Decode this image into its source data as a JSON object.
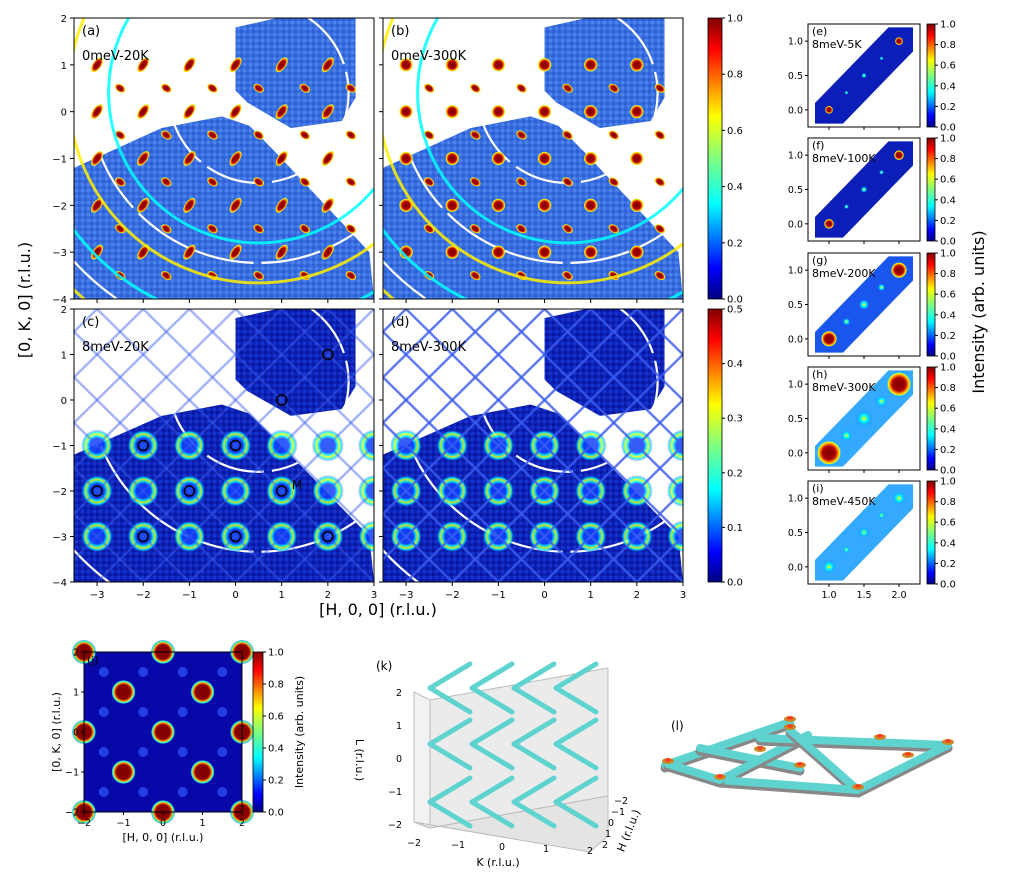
{
  "colors": {
    "jet": [
      "#00007f",
      "#0000ff",
      "#007fff",
      "#00ffff",
      "#7fff7f",
      "#ffff00",
      "#ff7f00",
      "#ff0000",
      "#7f0000"
    ],
    "map_background": "#3366dd",
    "map_background_dark": "#0a1fb0",
    "ring": "#ffffff",
    "marker": "#000000",
    "tube": "#5fd3cf"
  },
  "labels": {
    "main_xlabel": "[H, 0, 0] (r.l.u.)",
    "main_ylabel": "[0, K, 0] (r.l.u.)",
    "side_cbar_label": "Intensity (arb. units)",
    "j_xlabel": "[H, 0, 0] (r.l.u.)",
    "j_ylabel": "[0, K, 0] (r.l.u.)",
    "j_cbar_label": "Intensity (arb. units)",
    "k_xlabel": "K (r.l.u.)",
    "k_ylabel": "H (r.l.u.)",
    "k_zlabel": "L (r.l.u.)",
    "m_point": "M"
  },
  "chart_data": [
    {
      "type": "heatmap",
      "panel": "(a)",
      "annotation": "0meV-20K",
      "x_range": [
        -3.5,
        3
      ],
      "y_range": [
        -4,
        2
      ],
      "x_ticks": [
        "-3",
        "-2",
        "-1",
        "0",
        "1",
        "2",
        "3"
      ],
      "y_ticks": [
        "2",
        "1",
        "0",
        "-1",
        "-2",
        "-3",
        "-4"
      ],
      "colorbar": {
        "range": [
          0,
          1
        ],
        "ticks": [
          "0.0",
          "0.2",
          "0.4",
          "0.6",
          "0.8",
          "1.0"
        ]
      }
    },
    {
      "type": "heatmap",
      "panel": "(b)",
      "annotation": "0meV-300K",
      "x_range": [
        -3.5,
        3
      ],
      "y_range": [
        -4,
        2
      ]
    },
    {
      "type": "heatmap",
      "panel": "(c)",
      "annotation": "8meV-20K",
      "x_range": [
        -3.5,
        3
      ],
      "y_range": [
        -4,
        2
      ],
      "colorbar": {
        "range": [
          0,
          0.5
        ],
        "ticks": [
          "0.0",
          "0.1",
          "0.2",
          "0.3",
          "0.4",
          "0.5"
        ]
      },
      "circled_points": [
        [
          2,
          1
        ],
        [
          1,
          0
        ],
        [
          -2,
          -1
        ],
        [
          0,
          -1
        ],
        [
          -3,
          -2
        ],
        [
          -1,
          -2
        ],
        [
          1,
          -2
        ],
        [
          -2,
          -3
        ],
        [
          0,
          -3
        ],
        [
          2,
          -3
        ]
      ],
      "labeled_point": {
        "label": "M",
        "h": 1,
        "k": -2
      }
    },
    {
      "type": "heatmap",
      "panel": "(d)",
      "annotation": "8meV-300K",
      "x_range": [
        -3.5,
        3
      ],
      "y_range": [
        -4,
        2
      ]
    },
    {
      "type": "heatmap",
      "panel": "(e)",
      "annotation": "8meV-5K",
      "x_ticks": [
        "1.0",
        "1.5",
        "2.0"
      ],
      "y_ticks": [
        "1.0",
        "0.5",
        "0.0"
      ],
      "colorbar": {
        "range": [
          0,
          1
        ],
        "ticks": [
          "0.0",
          "0.2",
          "0.4",
          "0.6",
          "0.8",
          "1.0"
        ]
      }
    },
    {
      "type": "heatmap",
      "panel": "(f)",
      "annotation": "8meV-100K",
      "x_ticks": [
        "1.0",
        "1.5",
        "2.0"
      ],
      "y_ticks": [
        "1.0",
        "0.5",
        "0.0"
      ],
      "colorbar": {
        "range": [
          0,
          1
        ],
        "ticks": [
          "0.0",
          "0.2",
          "0.4",
          "0.6",
          "0.8",
          "1.0"
        ]
      }
    },
    {
      "type": "heatmap",
      "panel": "(g)",
      "annotation": "8meV-200K",
      "x_ticks": [
        "1.0",
        "1.5",
        "2.0"
      ],
      "y_ticks": [
        "1.0",
        "0.5",
        "0.0"
      ],
      "colorbar": {
        "range": [
          0,
          1
        ],
        "ticks": [
          "0.0",
          "0.2",
          "0.4",
          "0.6",
          "0.8",
          "1.0"
        ]
      }
    },
    {
      "type": "heatmap",
      "panel": "(h)",
      "annotation": "8meV-300K",
      "x_ticks": [
        "1.0",
        "1.5",
        "2.0"
      ],
      "y_ticks": [
        "1.0",
        "0.5",
        "0.0"
      ],
      "colorbar": {
        "range": [
          0,
          1
        ],
        "ticks": [
          "0.0",
          "0.2",
          "0.4",
          "0.6",
          "0.8",
          "1.0"
        ]
      }
    },
    {
      "type": "heatmap",
      "panel": "(i)",
      "annotation": "8meV-450K",
      "x_ticks": [
        "1.0",
        "1.5",
        "2.0"
      ],
      "y_ticks": [
        "1.0",
        "0.5",
        "0.0"
      ],
      "colorbar": {
        "range": [
          0,
          1
        ],
        "ticks": [
          "0.0",
          "0.2",
          "0.4",
          "0.6",
          "0.8",
          "1.0"
        ]
      }
    },
    {
      "type": "heatmap",
      "panel": "(j)",
      "x_range": [
        -2,
        2
      ],
      "y_range": [
        -2,
        2
      ],
      "x_ticks": [
        "-2",
        "-1",
        "0",
        "1",
        "2"
      ],
      "y_ticks": [
        "2",
        "1",
        "0",
        "-1",
        "-2"
      ],
      "colorbar": {
        "range": [
          0,
          1
        ],
        "ticks": [
          "0.0",
          "0.2",
          "0.4",
          "0.6",
          "0.8",
          "1.0"
        ]
      }
    },
    {
      "type": "other",
      "panel": "(k)",
      "z_ticks": [
        "2",
        "1",
        "0",
        "-1",
        "-2"
      ],
      "x_ticks": [
        "-2",
        "-1",
        "0",
        "1",
        "2"
      ],
      "y_ticks": [
        "-2",
        "-1",
        "0",
        "1",
        "2"
      ]
    },
    {
      "type": "other",
      "panel": "(l)"
    }
  ]
}
